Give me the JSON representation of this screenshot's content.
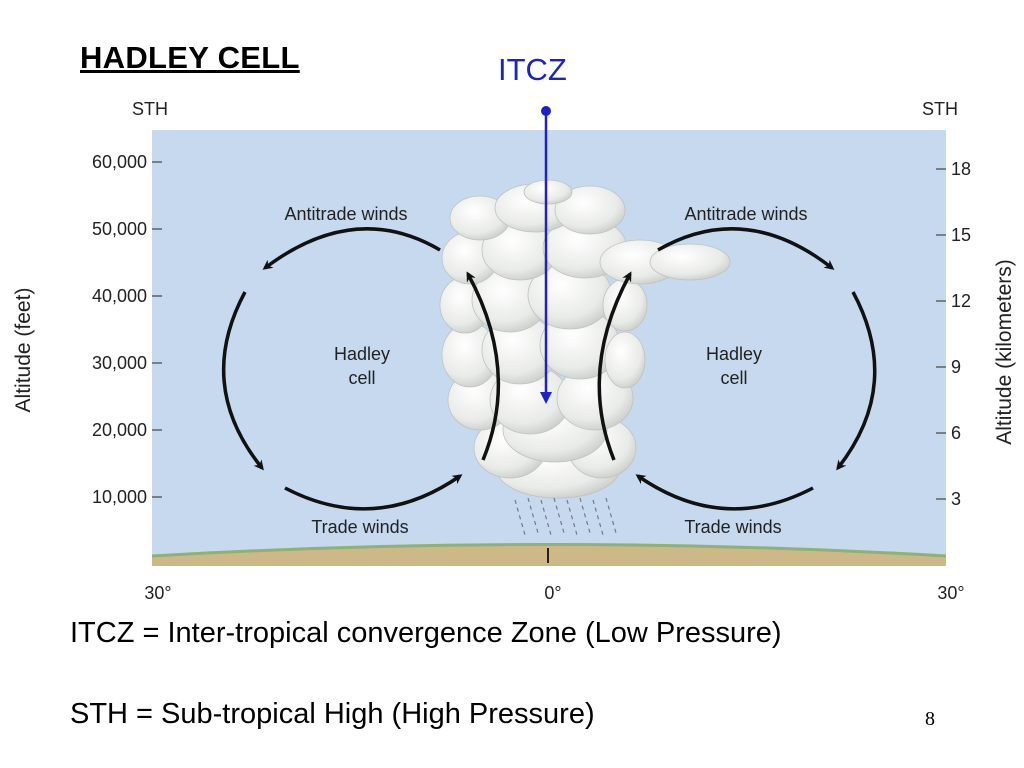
{
  "slide": {
    "title": "HADLEY CELL",
    "itcz_label": "ITCZ",
    "definitions": [
      "ITCZ = Inter-tropical convergence Zone (Low Pressure)",
      "STH = Sub-tropical High (High Pressure)"
    ],
    "page_number": "8"
  },
  "diagram": {
    "top_labels": {
      "left": "STH",
      "right": "STH"
    },
    "left_axis": {
      "label": "Altitude (feet)",
      "ticks": [
        "60,000",
        "50,000",
        "40,000",
        "30,000",
        "20,000",
        "10,000"
      ]
    },
    "right_axis": {
      "label": "Altitude (kilometers)",
      "ticks": [
        "18",
        "15",
        "12",
        "9",
        "6",
        "3"
      ]
    },
    "bottom_labels": {
      "left": "30°",
      "center": "0°",
      "right": "30°"
    },
    "left_cell": {
      "antitrade": "Antitrade winds",
      "cell_line1": "Hadley",
      "cell_line2": "cell",
      "trade": "Trade winds"
    },
    "right_cell": {
      "antitrade": "Antitrade winds",
      "cell_line1": "Hadley",
      "cell_line2": "cell",
      "trade": "Trade winds"
    },
    "colors": {
      "sky": "#c6d9ef",
      "ground": "#cdb987",
      "ground_edge": "#8fb076",
      "itcz_arrow": "#1c22c8",
      "wind_arrows": "#111111"
    },
    "icons": [
      "cumulonimbus-cloud",
      "rain-streaks",
      "circulation-arrows"
    ]
  }
}
